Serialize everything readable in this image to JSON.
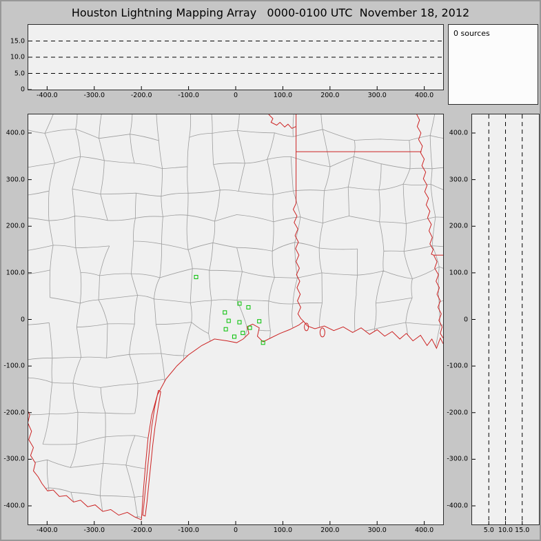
{
  "window": {
    "title": "Houston Lightning Mapping Array   0000-0100 UTC  November 18, 2012"
  },
  "sources_panel": {
    "label": "0 sources"
  },
  "colors": {
    "state_border": "#cc2222",
    "county_line": "#9c9c9c",
    "station_marker": "#00c000",
    "grid_dash": "#000000",
    "tick": "#000000",
    "panel_bg": "#f0f0f0",
    "window_bg": "#c6c6c6",
    "sources_bg": "#fcfcfc"
  },
  "chart_data": [
    {
      "id": "altitude-vs-ew",
      "type": "scatter",
      "points": [],
      "xlim": [
        -440,
        440
      ],
      "ylim": [
        0,
        20
      ],
      "xticks": {
        "values": [
          -400,
          -300,
          -200,
          -100,
          0,
          100,
          200,
          300,
          400
        ],
        "labels": [
          "-400.0",
          "-300.0",
          "-200.0",
          "-100.0",
          "0",
          "100.0",
          "200.0",
          "300.0",
          "400.0"
        ]
      },
      "yticks": {
        "values": [
          15,
          10,
          5,
          0
        ],
        "labels": [
          "15.0",
          "10.0",
          "5.0",
          "0"
        ]
      },
      "gridlines": {
        "axis": "y",
        "values": [
          5,
          10,
          15
        ],
        "style": "dashed"
      }
    },
    {
      "id": "plan-view-map",
      "type": "scatter",
      "points": [],
      "xlim": [
        -440,
        440
      ],
      "ylim": [
        -440,
        440
      ],
      "xticks": {
        "values": [
          -400,
          -300,
          -200,
          -100,
          0,
          100,
          200,
          300,
          400
        ],
        "labels": [
          "-400.0",
          "-300.0",
          "-200.0",
          "-100.0",
          "0",
          "100.0",
          "200.0",
          "300.0",
          "400.0"
        ]
      },
      "yticks": {
        "values": [
          400,
          300,
          200,
          100,
          0,
          -100,
          -200,
          -300,
          -400
        ],
        "labels": [
          "400.0",
          "300.0",
          "200.0",
          "100.0",
          "0",
          "-100.0",
          "-200.0",
          "-300.0",
          "-400.0"
        ]
      },
      "stations": [
        [
          -84,
          91
        ],
        [
          8,
          34
        ],
        [
          27,
          26
        ],
        [
          -23,
          15
        ],
        [
          -15,
          -3
        ],
        [
          8,
          -6
        ],
        [
          -21,
          -21
        ],
        [
          15,
          -29
        ],
        [
          -3,
          -37
        ],
        [
          30,
          -18
        ],
        [
          50,
          -4
        ],
        [
          58,
          -50
        ]
      ]
    },
    {
      "id": "altitude-vs-ns",
      "type": "scatter",
      "points": [],
      "xlim": [
        0,
        20
      ],
      "ylim": [
        -440,
        440
      ],
      "xticks": {
        "values": [
          5,
          10,
          15
        ],
        "labels": [
          "5.0",
          "10.0",
          "15.0"
        ]
      },
      "yticks": {
        "values": [
          400,
          300,
          200,
          100,
          0,
          -100,
          -200,
          -300,
          -400
        ],
        "labels": [
          "400.0",
          "300.0",
          "200.0",
          "100.0",
          "0",
          "-100.0",
          "-200.0",
          "-300.0",
          "-400.0"
        ]
      },
      "gridlines": {
        "axis": "x",
        "values": [
          5,
          10,
          15
        ],
        "style": "dashed"
      }
    }
  ]
}
